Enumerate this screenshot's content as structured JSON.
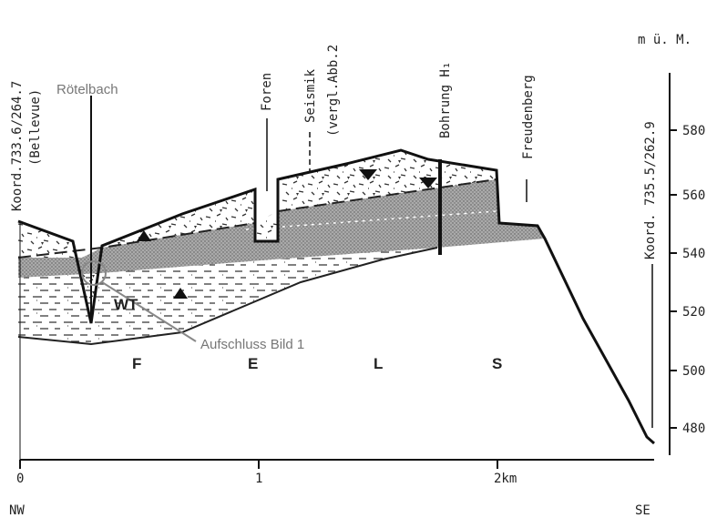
{
  "header": {
    "unit": "m ü. M."
  },
  "elevation_axis": {
    "ticks": [
      580,
      560,
      540,
      520,
      500,
      480
    ]
  },
  "distance_axis": {
    "ticks": [
      "0",
      "1",
      "2km"
    ]
  },
  "directions": [
    "NW",
    "SE"
  ],
  "labels": {
    "left_coord": "Koord.733.6/264.7",
    "left_place": "(Bellevue)",
    "foren": "Foren",
    "seismik": "Seismik",
    "seismik_ref": "(vergl.Abb.2",
    "bohrung": "Bohrung H₁",
    "freudenberg": "Freudenberg",
    "right_coord": "Koord. 735.5/262.9",
    "roetelbach": "Rötelbach",
    "wt": "WT",
    "aufschluss": "Aufschluss Bild 1"
  },
  "zones": [
    "F",
    "E",
    "L",
    "S"
  ]
}
